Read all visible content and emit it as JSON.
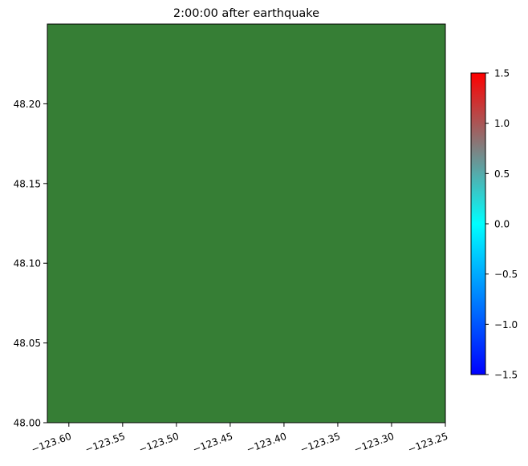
{
  "chart_data": {
    "type": "heatmap",
    "title": "2:00:00 after earthquake",
    "xlabel": "",
    "ylabel": "",
    "xlim": [
      -123.62,
      -123.25
    ],
    "ylim": [
      48.0,
      48.25
    ],
    "xticks": [
      -123.6,
      -123.55,
      -123.5,
      -123.45,
      -123.4,
      -123.35,
      -123.3,
      -123.25
    ],
    "xtick_labels": [
      "−123.60",
      "−123.55",
      "−123.50",
      "−123.45",
      "−123.40",
      "−123.35",
      "−123.30",
      "−123.25"
    ],
    "yticks": [
      48.0,
      48.05,
      48.1,
      48.15,
      48.2
    ],
    "ytick_labels": [
      "48.00",
      "48.05",
      "48.10",
      "48.15",
      "48.20"
    ],
    "fill_color": "#367e35",
    "colorbar": {
      "range": [
        -1.5,
        1.5
      ],
      "ticks": [
        -1.5,
        -1.0,
        -0.5,
        0.0,
        0.5,
        1.0,
        1.5
      ],
      "tick_labels": [
        "−1.5",
        "−1.0",
        "−0.5",
        "0.0",
        "0.5",
        "1.0",
        "1.5"
      ],
      "colors": [
        "#0000ff",
        "#0080ff",
        "#00ffff",
        "#808080",
        "#ff0000"
      ]
    },
    "grid": false
  }
}
